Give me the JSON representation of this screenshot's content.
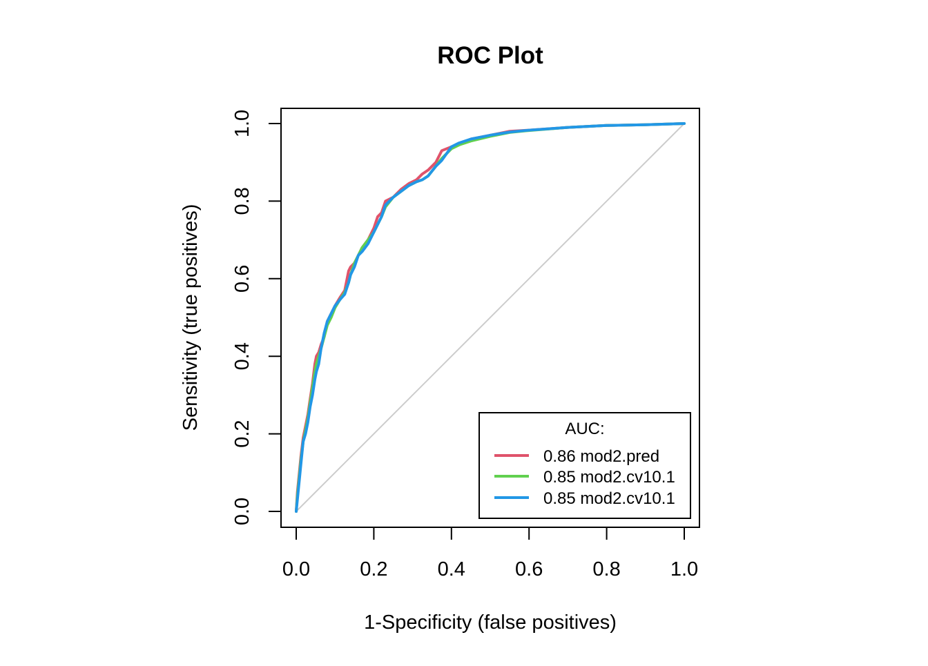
{
  "chart_data": {
    "type": "line",
    "title": "ROC Plot",
    "xlabel": "1-Specificity (false positives)",
    "ylabel": "Sensitivity (true positives)",
    "xlim": [
      0,
      1
    ],
    "ylim": [
      0,
      1
    ],
    "x_ticks": [
      "0.0",
      "0.2",
      "0.4",
      "0.6",
      "0.8",
      "1.0"
    ],
    "y_ticks": [
      "0.0",
      "0.2",
      "0.4",
      "0.6",
      "0.8",
      "1.0"
    ],
    "grid": false,
    "legend": {
      "title": "AUC:",
      "placement": "bottom-right",
      "entries": [
        "0.86 mod2.pred",
        "0.85 mod2.cv10.1",
        "0.85 mod2.cv10.1"
      ]
    },
    "reference_line": {
      "name": "chance diagonal",
      "color": "#cccccc",
      "x": [
        0,
        1
      ],
      "y": [
        0,
        1
      ]
    },
    "series": [
      {
        "name": "0.86 mod2.pred",
        "auc": 0.86,
        "color": "#df536b",
        "x": [
          0,
          0.003,
          0.008,
          0.012,
          0.018,
          0.024,
          0.03,
          0.036,
          0.042,
          0.048,
          0.052,
          0.058,
          0.064,
          0.072,
          0.08,
          0.09,
          0.1,
          0.112,
          0.125,
          0.135,
          0.14,
          0.15,
          0.16,
          0.17,
          0.185,
          0.2,
          0.21,
          0.22,
          0.23,
          0.25,
          0.27,
          0.29,
          0.31,
          0.325,
          0.34,
          0.36,
          0.375,
          0.4,
          0.42,
          0.45,
          0.5,
          0.55,
          0.6,
          0.7,
          0.8,
          0.9,
          1.0
        ],
        "y": [
          0,
          0.05,
          0.1,
          0.14,
          0.19,
          0.22,
          0.25,
          0.29,
          0.33,
          0.38,
          0.4,
          0.41,
          0.43,
          0.45,
          0.49,
          0.51,
          0.53,
          0.55,
          0.57,
          0.62,
          0.63,
          0.64,
          0.66,
          0.68,
          0.7,
          0.73,
          0.76,
          0.77,
          0.8,
          0.81,
          0.83,
          0.845,
          0.855,
          0.87,
          0.88,
          0.9,
          0.93,
          0.94,
          0.945,
          0.96,
          0.97,
          0.98,
          0.983,
          0.99,
          0.995,
          0.997,
          1.0
        ]
      },
      {
        "name": "0.85 mod2.cv10.1",
        "auc": 0.85,
        "color": "#61d04f",
        "x": [
          0,
          0.003,
          0.008,
          0.012,
          0.018,
          0.024,
          0.03,
          0.036,
          0.042,
          0.048,
          0.052,
          0.058,
          0.064,
          0.072,
          0.08,
          0.09,
          0.1,
          0.112,
          0.125,
          0.135,
          0.14,
          0.15,
          0.16,
          0.17,
          0.185,
          0.2,
          0.21,
          0.22,
          0.23,
          0.25,
          0.27,
          0.29,
          0.31,
          0.325,
          0.34,
          0.36,
          0.375,
          0.4,
          0.42,
          0.45,
          0.5,
          0.55,
          0.6,
          0.7,
          0.8,
          0.9,
          1.0
        ],
        "y": [
          0,
          0.04,
          0.09,
          0.13,
          0.18,
          0.21,
          0.24,
          0.28,
          0.32,
          0.36,
          0.38,
          0.4,
          0.42,
          0.45,
          0.48,
          0.5,
          0.525,
          0.545,
          0.565,
          0.59,
          0.61,
          0.64,
          0.66,
          0.68,
          0.7,
          0.72,
          0.74,
          0.76,
          0.785,
          0.81,
          0.825,
          0.84,
          0.85,
          0.855,
          0.865,
          0.89,
          0.91,
          0.935,
          0.945,
          0.955,
          0.967,
          0.977,
          0.982,
          0.99,
          0.995,
          0.997,
          1.0
        ]
      },
      {
        "name": "0.85 mod2.cv10.1",
        "auc": 0.85,
        "color": "#2297e6",
        "x": [
          0,
          0.003,
          0.008,
          0.012,
          0.018,
          0.024,
          0.03,
          0.036,
          0.042,
          0.048,
          0.052,
          0.058,
          0.064,
          0.072,
          0.08,
          0.09,
          0.1,
          0.112,
          0.125,
          0.135,
          0.14,
          0.15,
          0.16,
          0.17,
          0.185,
          0.2,
          0.21,
          0.22,
          0.23,
          0.25,
          0.27,
          0.29,
          0.31,
          0.325,
          0.34,
          0.36,
          0.375,
          0.4,
          0.42,
          0.45,
          0.5,
          0.55,
          0.6,
          0.7,
          0.8,
          0.9,
          1.0
        ],
        "y": [
          0,
          0.03,
          0.08,
          0.12,
          0.18,
          0.2,
          0.23,
          0.27,
          0.3,
          0.34,
          0.36,
          0.38,
          0.42,
          0.46,
          0.49,
          0.51,
          0.53,
          0.545,
          0.56,
          0.59,
          0.61,
          0.63,
          0.66,
          0.67,
          0.69,
          0.72,
          0.74,
          0.76,
          0.79,
          0.81,
          0.825,
          0.84,
          0.85,
          0.855,
          0.865,
          0.89,
          0.905,
          0.94,
          0.95,
          0.96,
          0.97,
          0.978,
          0.983,
          0.99,
          0.995,
          0.997,
          1.0
        ]
      }
    ]
  }
}
